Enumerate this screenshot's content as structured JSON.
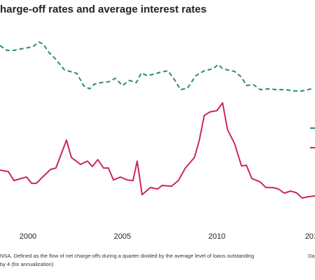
{
  "chart_data": {
    "type": "line",
    "title": "harge-off rates and average interest rates",
    "notes": [
      "NSA. Defined as the flow of net charge-offs during a quarter divided by the average level of loans outstanding",
      "by 4 (for annualization)"
    ],
    "source": "Da",
    "xlim": [
      1998.52,
      2015.19
    ],
    "ylim": [
      0,
      100
    ],
    "xticks": [
      2000,
      2005,
      2010,
      {
        "value": 2015,
        "label": "201"
      }
    ],
    "series": [
      {
        "color": "#2a8a7e",
        "dashed": true,
        "x": [
          1998.52,
          1998.89,
          1999.26,
          1999.63,
          2000.0,
          2000.3,
          2000.56,
          2000.81,
          2001.11,
          2001.48,
          2001.93,
          2002.22,
          2002.59,
          2002.96,
          2003.26,
          2003.52,
          2003.89,
          2004.26,
          2004.63,
          2005.0,
          2005.37,
          2005.74,
          2006.0,
          2006.3,
          2006.67,
          2007.04,
          2007.41,
          2007.78,
          2008.07,
          2008.44,
          2008.89,
          2009.33,
          2009.81,
          2010.07,
          2010.3,
          2010.56,
          2010.93,
          2011.3,
          2011.56,
          2011.93,
          2012.3,
          2012.78,
          2013.15,
          2013.63,
          2014.07,
          2014.52,
          2015.0
        ],
        "values": [
          88.3,
          86.0,
          86.0,
          86.7,
          87.3,
          88.0,
          90.0,
          89.0,
          85.0,
          81.7,
          76.7,
          76.0,
          75.0,
          69.0,
          67.7,
          70.0,
          70.7,
          71.0,
          72.7,
          69.3,
          71.7,
          70.7,
          75.3,
          74.0,
          74.7,
          75.7,
          76.3,
          71.7,
          67.3,
          68.0,
          74.0,
          76.3,
          77.3,
          79.3,
          77.3,
          76.7,
          76.0,
          73.3,
          69.3,
          69.7,
          67.3,
          67.7,
          67.3,
          67.3,
          66.7,
          66.7,
          67.7
        ]
      },
      {
        "color": "#c8285a",
        "dashed": false,
        "x": [
          1998.52,
          1998.96,
          1999.26,
          1999.63,
          1999.93,
          2000.19,
          2000.44,
          2000.81,
          2001.19,
          2001.48,
          2002.04,
          2002.3,
          2002.78,
          2003.15,
          2003.41,
          2003.7,
          2004.0,
          2004.26,
          2004.52,
          2004.89,
          2005.26,
          2005.56,
          2005.78,
          2006.04,
          2006.48,
          2006.85,
          2007.11,
          2007.59,
          2007.96,
          2008.33,
          2008.81,
          2009.07,
          2009.33,
          2009.63,
          2010.0,
          2010.3,
          2010.56,
          2010.93,
          2011.3,
          2011.56,
          2011.85,
          2012.3,
          2012.59,
          2012.96,
          2013.26,
          2013.56,
          2013.89,
          2014.19,
          2014.52,
          2014.81,
          2015.19
        ],
        "values": [
          29.0,
          28.3,
          24.0,
          25.0,
          25.7,
          22.7,
          22.7,
          26.0,
          29.3,
          30.0,
          43.3,
          35.0,
          31.7,
          33.3,
          30.7,
          34.0,
          30.0,
          30.0,
          24.3,
          25.7,
          24.3,
          24.0,
          33.3,
          17.3,
          20.7,
          20.0,
          21.7,
          21.3,
          24.0,
          30.0,
          35.0,
          43.3,
          55.0,
          56.7,
          57.3,
          61.0,
          48.3,
          41.7,
          31.0,
          31.3,
          25.0,
          23.3,
          20.7,
          20.7,
          20.0,
          18.0,
          19.0,
          18.3,
          15.7,
          16.3,
          16.7
        ]
      }
    ]
  }
}
